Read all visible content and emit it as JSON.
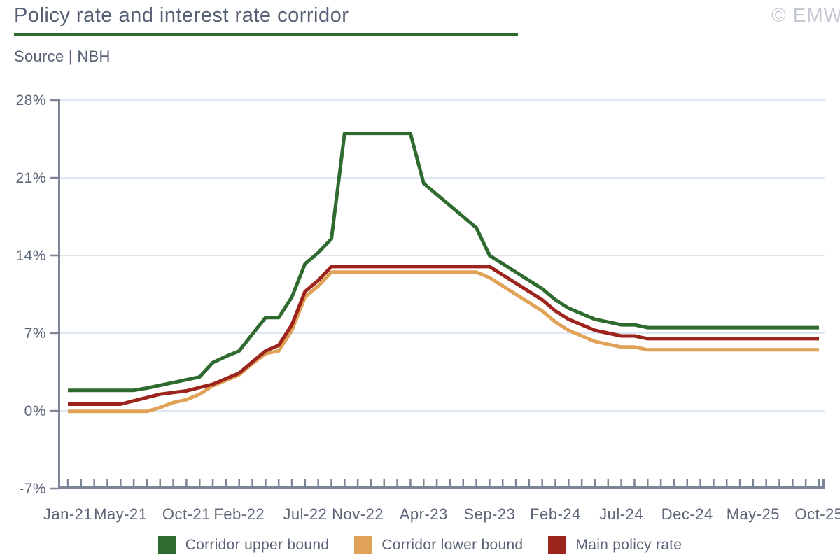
{
  "header": {
    "title": "Policy rate and interest rate corridor",
    "watermark": "© EMW",
    "source_label": "Source | NBH"
  },
  "colors": {
    "corridor_upper": "#2f6b2f",
    "corridor_lower": "#dfa256",
    "main_policy_rate": "#9d241c",
    "title_underline": "#2a6c2f",
    "gridline": "#dde6f1",
    "axis": "#7b8595",
    "tick_text": "#5c6677",
    "watermark_text": "#c5c9d1"
  },
  "chart_data": {
    "type": "line",
    "title": "Policy rate and interest rate corridor",
    "source": "NBH",
    "xlabel": "",
    "ylabel": "",
    "grid": "horizontal",
    "legend_position": "bottom",
    "ylim": [
      -7,
      28
    ],
    "y_tick_values": [
      28,
      21,
      14,
      7,
      0,
      -7
    ],
    "y_tick_labels": [
      "28%",
      "21%",
      "14%",
      "7%",
      "0%",
      "-7%"
    ],
    "x": [
      "Jan-21",
      "Feb-21",
      "Mar-21",
      "Apr-21",
      "May-21",
      "Jun-21",
      "Jul-21",
      "Aug-21",
      "Sep-21",
      "Oct-21",
      "Nov-21",
      "Dec-21",
      "Jan-22",
      "Feb-22",
      "Mar-22",
      "Apr-22",
      "May-22",
      "Jun-22",
      "Jul-22",
      "Aug-22",
      "Sep-22",
      "Oct-22",
      "Nov-22",
      "Dec-22",
      "Jan-23",
      "Feb-23",
      "Mar-23",
      "Apr-23",
      "May-23",
      "Jun-23",
      "Jul-23",
      "Aug-23",
      "Sep-23",
      "Oct-23",
      "Nov-23",
      "Dec-23",
      "Jan-24",
      "Feb-24",
      "Mar-24",
      "Apr-24",
      "May-24",
      "Jun-24",
      "Jul-24",
      "Aug-24",
      "Sep-24",
      "Oct-24",
      "Nov-24",
      "Dec-24",
      "Jan-25",
      "Feb-25",
      "Mar-25",
      "Apr-25",
      "May-25",
      "Jun-25",
      "Jul-25",
      "Aug-25",
      "Sep-25",
      "Oct-25"
    ],
    "x_tick_label_indices": [
      0,
      4,
      9,
      13,
      18,
      22,
      27,
      32,
      37,
      42,
      47,
      52,
      57
    ],
    "x_tick_labels": [
      "Jan-21",
      "May-21",
      "Oct-21",
      "Feb-22",
      "Jul-22",
      "Nov-22",
      "Apr-23",
      "Sep-23",
      "Feb-24",
      "Jul-24",
      "Dec-24",
      "May-25",
      "Oct-25"
    ],
    "series": [
      {
        "name": "Corridor upper bound",
        "color": "#2f6b2f",
        "values": [
          1.85,
          1.85,
          1.85,
          1.85,
          1.85,
          1.85,
          2.05,
          2.3,
          2.55,
          2.8,
          3.05,
          4.35,
          4.9,
          5.4,
          6.9,
          8.4,
          8.4,
          10.25,
          13.25,
          14.25,
          15.5,
          25,
          25,
          25,
          25,
          25,
          25,
          20.5,
          19.5,
          18.5,
          17.5,
          16.5,
          14,
          13.25,
          12.5,
          11.75,
          11,
          10,
          9.25,
          8.75,
          8.25,
          8,
          7.75,
          7.75,
          7.5,
          7.5,
          7.5,
          7.5,
          7.5,
          7.5,
          7.5,
          7.5,
          7.5,
          7.5,
          7.5,
          7.5,
          7.5,
          7.5
        ]
      },
      {
        "name": "Corridor lower bound",
        "color": "#dfa256",
        "values": [
          -0.05,
          -0.05,
          -0.05,
          -0.05,
          -0.05,
          -0.05,
          -0.05,
          0.3,
          0.75,
          1.0,
          1.5,
          2.25,
          2.75,
          3.25,
          4.25,
          5.15,
          5.4,
          7.25,
          10.25,
          11.25,
          12.5,
          12.5,
          12.5,
          12.5,
          12.5,
          12.5,
          12.5,
          12.5,
          12.5,
          12.5,
          12.5,
          12.5,
          12,
          11.25,
          10.5,
          9.75,
          9,
          8,
          7.25,
          6.75,
          6.25,
          6,
          5.75,
          5.75,
          5.5,
          5.5,
          5.5,
          5.5,
          5.5,
          5.5,
          5.5,
          5.5,
          5.5,
          5.5,
          5.5,
          5.5,
          5.5,
          5.5
        ]
      },
      {
        "name": "Main policy rate",
        "color": "#9d241c",
        "values": [
          0.6,
          0.6,
          0.6,
          0.6,
          0.6,
          0.9,
          1.2,
          1.5,
          1.65,
          1.8,
          2.1,
          2.4,
          2.9,
          3.4,
          4.4,
          5.4,
          5.9,
          7.75,
          10.75,
          11.75,
          13,
          13,
          13,
          13,
          13,
          13,
          13,
          13,
          13,
          13,
          13,
          13,
          13,
          12.25,
          11.5,
          10.75,
          10,
          9,
          8.25,
          7.75,
          7.25,
          7,
          6.75,
          6.75,
          6.5,
          6.5,
          6.5,
          6.5,
          6.5,
          6.5,
          6.5,
          6.5,
          6.5,
          6.5,
          6.5,
          6.5,
          6.5,
          6.5
        ]
      }
    ]
  },
  "legend": {
    "items": [
      {
        "label": "Corridor upper bound",
        "color": "#2f6b2f"
      },
      {
        "label": "Corridor lower bound",
        "color": "#dfa256"
      },
      {
        "label": "Main policy rate",
        "color": "#9d241c"
      }
    ]
  }
}
